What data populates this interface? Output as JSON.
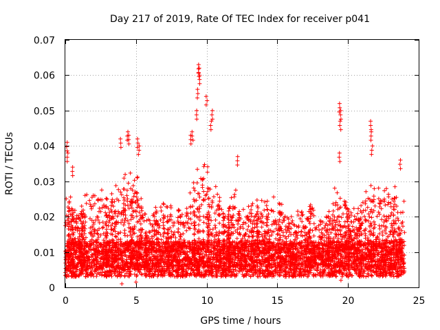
{
  "chart_data": {
    "type": "scatter",
    "title": "Day 217 of 2019, Rate Of TEC Index for receiver p041",
    "xlabel": "GPS time / hours",
    "ylabel": "ROTI / TECUs",
    "xlim": [
      0,
      25
    ],
    "ylim": [
      0,
      0.07
    ],
    "xticks": [
      0,
      5,
      10,
      15,
      20,
      25
    ],
    "yticks": [
      0,
      0.01,
      0.02,
      0.03,
      0.04,
      0.05,
      0.06,
      0.07
    ],
    "xtick_labels": [
      "0",
      "5",
      "10",
      "15",
      "20",
      "25"
    ],
    "ytick_labels": [
      "0",
      "0.01",
      "0.02",
      "0.03",
      "0.04",
      "0.05",
      "0.06",
      "0.07"
    ],
    "grid": true,
    "marker": "+",
    "color": "#ff0000",
    "x_range_of_data": [
      0,
      24
    ],
    "envelope": {
      "description_hours": [
        0,
        0.5,
        1,
        1.5,
        2,
        2.5,
        3,
        3.5,
        4,
        4.5,
        5,
        5.5,
        6,
        6.5,
        7,
        7.5,
        8,
        8.5,
        9,
        9.5,
        10,
        10.5,
        11,
        11.5,
        12,
        12.5,
        13,
        13.5,
        14,
        14.5,
        15,
        15.5,
        16,
        16.5,
        17,
        17.5,
        18,
        18.5,
        19,
        19.5,
        20,
        20.5,
        21,
        21.5,
        22,
        22.5,
        23,
        23.5,
        24
      ],
      "typical_max": [
        0.03,
        0.025,
        0.022,
        0.028,
        0.027,
        0.03,
        0.025,
        0.03,
        0.03,
        0.035,
        0.035,
        0.022,
        0.02,
        0.025,
        0.025,
        0.023,
        0.022,
        0.022,
        0.03,
        0.04,
        0.035,
        0.03,
        0.025,
        0.022,
        0.03,
        0.022,
        0.025,
        0.025,
        0.028,
        0.027,
        0.025,
        0.023,
        0.02,
        0.023,
        0.025,
        0.023,
        0.02,
        0.022,
        0.028,
        0.03,
        0.025,
        0.022,
        0.026,
        0.03,
        0.028,
        0.03,
        0.03,
        0.03,
        0.025
      ]
    },
    "peaks": [
      {
        "x": 0.1,
        "y": 0.041
      },
      {
        "x": 0.15,
        "y": 0.038
      },
      {
        "x": 0.5,
        "y": 0.034
      },
      {
        "x": 3.9,
        "y": 0.042
      },
      {
        "x": 4.4,
        "y": 0.044
      },
      {
        "x": 4.5,
        "y": 0.043
      },
      {
        "x": 5.1,
        "y": 0.042
      },
      {
        "x": 5.2,
        "y": 0.04
      },
      {
        "x": 8.9,
        "y": 0.043
      },
      {
        "x": 9.0,
        "y": 0.044
      },
      {
        "x": 9.3,
        "y": 0.05
      },
      {
        "x": 9.4,
        "y": 0.063
      },
      {
        "x": 9.45,
        "y": 0.062
      },
      {
        "x": 9.5,
        "y": 0.06
      },
      {
        "x": 9.35,
        "y": 0.056
      },
      {
        "x": 10.0,
        "y": 0.054
      },
      {
        "x": 10.4,
        "y": 0.05
      },
      {
        "x": 10.3,
        "y": 0.047
      },
      {
        "x": 12.2,
        "y": 0.037
      },
      {
        "x": 19.4,
        "y": 0.052
      },
      {
        "x": 19.5,
        "y": 0.05
      },
      {
        "x": 19.45,
        "y": 0.047
      },
      {
        "x": 19.4,
        "y": 0.038
      },
      {
        "x": 21.6,
        "y": 0.047
      },
      {
        "x": 21.65,
        "y": 0.044
      },
      {
        "x": 21.7,
        "y": 0.04
      },
      {
        "x": 23.7,
        "y": 0.036
      }
    ],
    "dips": [
      {
        "x": 4.0,
        "y": 0.001
      },
      {
        "x": 5.0,
        "y": 0.0015
      },
      {
        "x": 19.5,
        "y": 0.002
      }
    ]
  }
}
